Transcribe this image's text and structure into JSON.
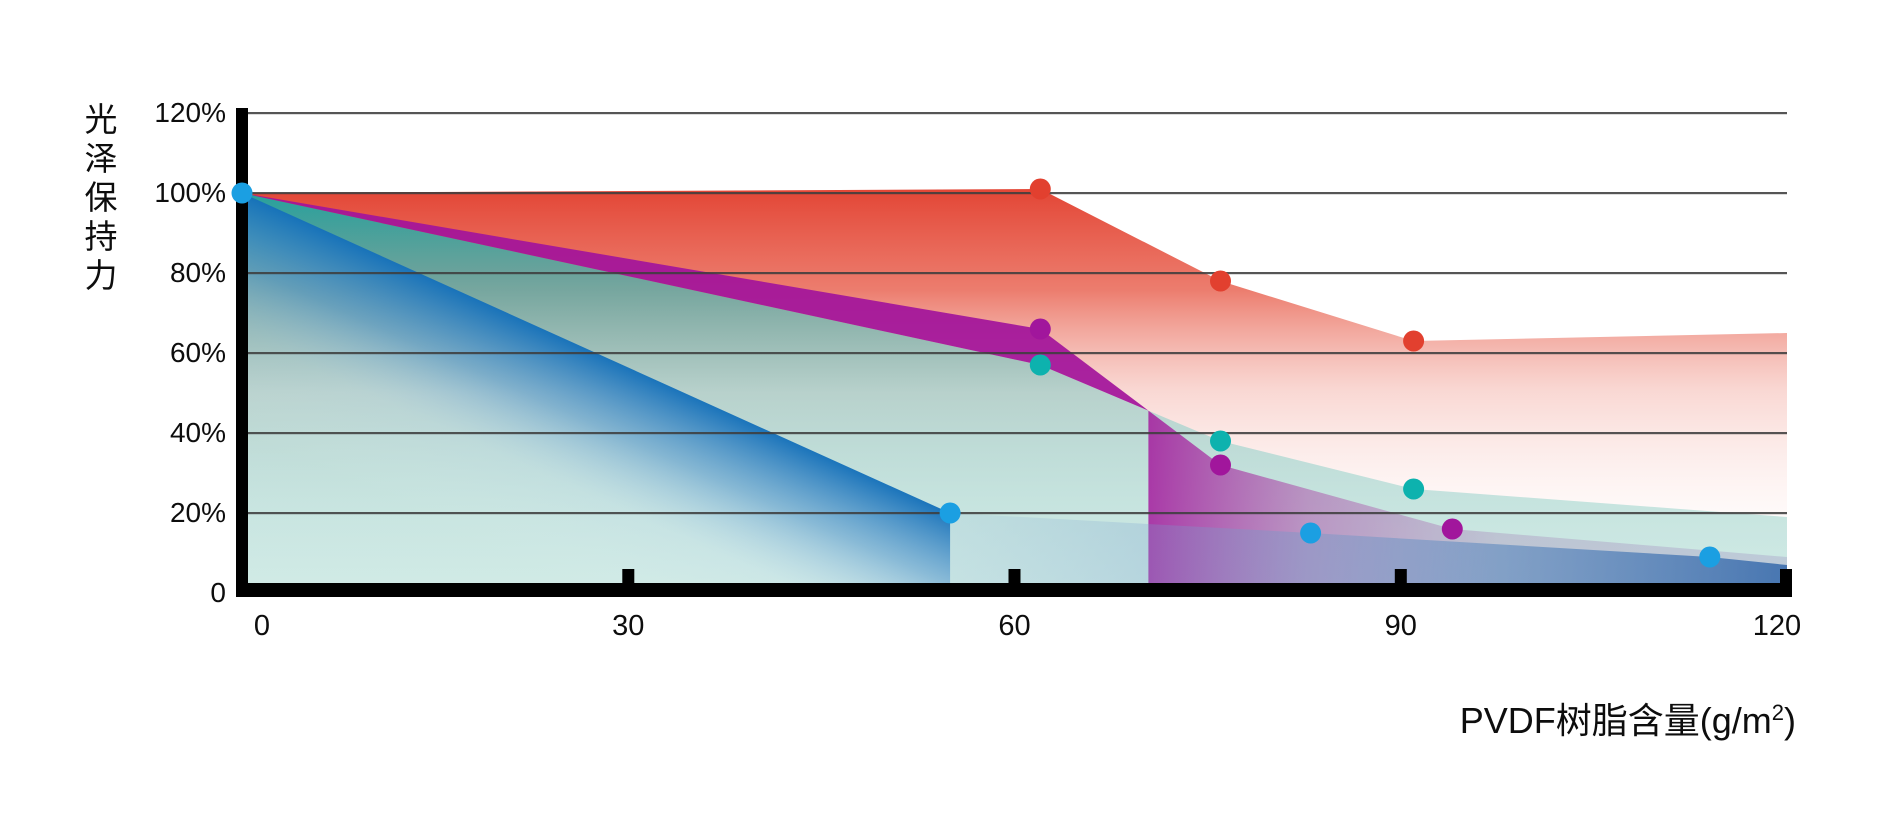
{
  "chart_data": {
    "type": "area",
    "title": "",
    "xlabel": "PVDF树脂含量(g/m2)",
    "xlabel_parts": {
      "prefix": "PVDF树脂含量(g/m",
      "sup": "2",
      "suffix": ")"
    },
    "ylabel": "光泽保持力",
    "xlim": [
      0,
      120
    ],
    "ylim": [
      0,
      120
    ],
    "grid": true,
    "grid_values": [
      20,
      40,
      60,
      80,
      100,
      120
    ],
    "x_ticks": [
      {
        "value": 0,
        "label": "0"
      },
      {
        "value": 30,
        "label": "30"
      },
      {
        "value": 60,
        "label": "60"
      },
      {
        "value": 90,
        "label": "90"
      },
      {
        "value": 120,
        "label": "120"
      }
    ],
    "y_ticks": [
      {
        "value": 0,
        "label": "0"
      },
      {
        "value": 20,
        "label": "20%"
      },
      {
        "value": 40,
        "label": "40%"
      },
      {
        "value": 60,
        "label": "60%"
      },
      {
        "value": 80,
        "label": "80%"
      },
      {
        "value": 100,
        "label": "100%"
      },
      {
        "value": 120,
        "label": "120%"
      }
    ],
    "legend": false,
    "series": [
      {
        "name": "red-series",
        "color": "#e2402f",
        "line": [
          [
            0,
            100
          ],
          [
            62,
            101
          ],
          [
            76,
            78
          ],
          [
            91,
            63
          ],
          [
            120,
            65
          ]
        ],
        "markers": [
          [
            62,
            101
          ],
          [
            76,
            78
          ],
          [
            91,
            63
          ]
        ]
      },
      {
        "name": "teal-series",
        "color": "#0db2ae",
        "line": [
          [
            0,
            100
          ],
          [
            62,
            57
          ],
          [
            76,
            38
          ],
          [
            91,
            26
          ],
          [
            120,
            19
          ]
        ],
        "markers": [
          [
            62,
            57
          ],
          [
            76,
            38
          ],
          [
            91,
            26
          ]
        ]
      },
      {
        "name": "purple-series",
        "color": "#a1169c",
        "line": [
          [
            0,
            100
          ],
          [
            62,
            66
          ],
          [
            76,
            32
          ],
          [
            94,
            16
          ],
          [
            120,
            9
          ]
        ],
        "markers": [
          [
            62,
            66
          ],
          [
            76,
            32
          ],
          [
            94,
            16
          ]
        ]
      },
      {
        "name": "blue-series",
        "color": "#1b9fe2",
        "line": [
          [
            0,
            100
          ],
          [
            55,
            20
          ],
          [
            83,
            15
          ],
          [
            114,
            9
          ],
          [
            120,
            7
          ]
        ],
        "markers": [
          [
            0,
            100
          ],
          [
            55,
            20
          ],
          [
            83,
            15
          ],
          [
            114,
            9
          ]
        ]
      }
    ]
  },
  "colors": {
    "background": "#ffffff",
    "axis": "#000000",
    "grid": "#3e3e3e",
    "text": "#0d0d0d",
    "red_fill": "#e23e2d",
    "teal_fill": "#1ca6a2",
    "purple_fill": "#a3149b",
    "blue_fill_dark": "#1671ba",
    "blue_fill_band": "#3a6cac",
    "purple_under_fill": "#b2b6d0"
  }
}
